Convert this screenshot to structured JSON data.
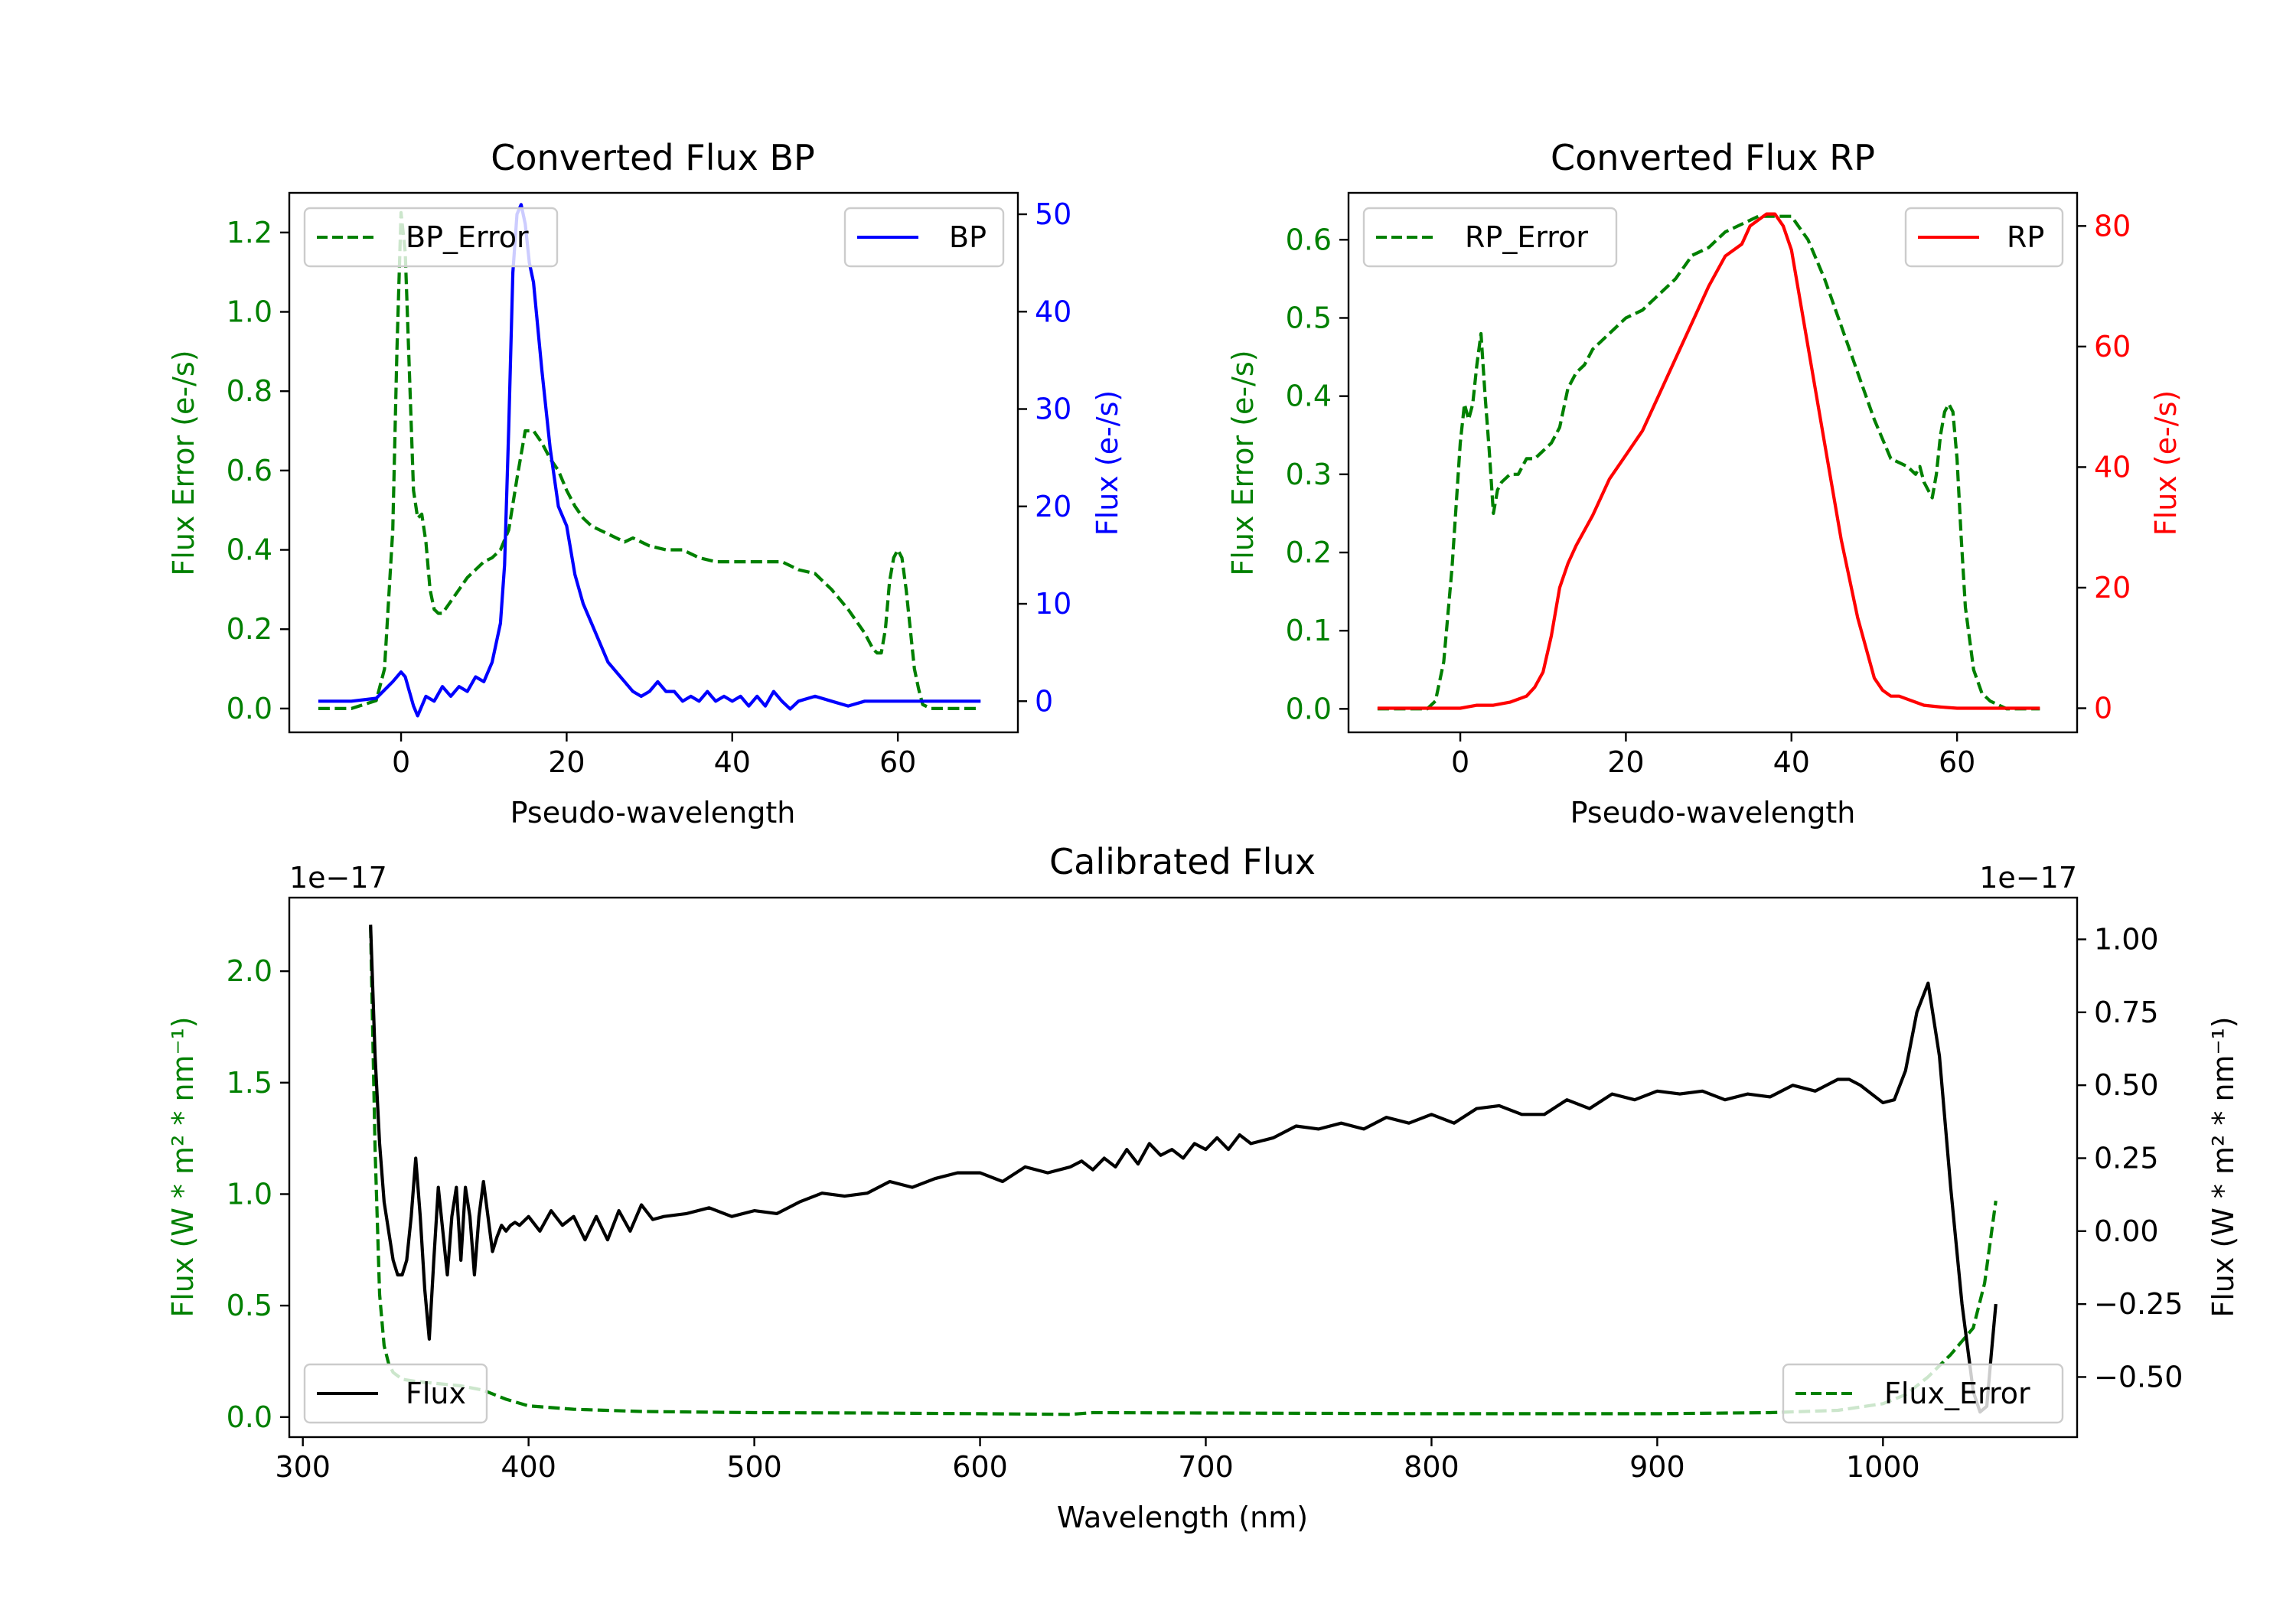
{
  "chart_data": [
    {
      "id": "bp",
      "type": "line",
      "title": "Converted Flux BP",
      "xlabel": "Pseudo-wavelength",
      "ylabel_left": "Flux Error (e-/s)",
      "ylabel_right": "Flux (e-/s)",
      "xlim": [
        -13.5,
        74.5
      ],
      "ylim_left": [
        -0.06,
        1.3
      ],
      "ylim_right": [
        -3.2,
        52.2
      ],
      "xticks": [
        0,
        20,
        40,
        60
      ],
      "xtick_labels": [
        "0",
        "20",
        "40",
        "60"
      ],
      "yticks_left": [
        0.0,
        0.2,
        0.4,
        0.6,
        0.8,
        1.0,
        1.2
      ],
      "ytick_labels_left": [
        "0.0",
        "0.2",
        "0.4",
        "0.6",
        "0.8",
        "1.0",
        "1.2"
      ],
      "yticks_right": [
        0,
        10,
        20,
        30,
        40,
        50
      ],
      "ytick_labels_right": [
        "0",
        "10",
        "20",
        "30",
        "40",
        "50"
      ],
      "colors": {
        "left_axis": "#008000",
        "right_axis": "#0000ff"
      },
      "series": [
        {
          "name": "BP_Error",
          "axis": "left",
          "color": "#008000",
          "style": "dashed",
          "x": [
            -10,
            -6,
            -3,
            -2,
            -1,
            -0.5,
            0,
            0.5,
            1,
            1.5,
            2,
            2.5,
            3,
            3.5,
            4,
            4.5,
            5,
            6,
            7,
            8,
            9,
            10,
            11,
            12,
            13,
            14,
            15,
            16,
            17,
            18,
            19,
            20,
            21,
            22,
            23,
            24,
            25,
            26,
            27,
            28,
            29,
            30,
            32,
            34,
            36,
            38,
            40,
            42,
            44,
            46,
            48,
            50,
            52,
            54,
            56,
            56.5,
            57,
            57.5,
            58,
            58.5,
            59,
            59.5,
            60,
            60.5,
            61,
            61.5,
            62,
            62.5,
            63,
            64,
            66,
            68,
            70
          ],
          "y": [
            0.0,
            0.0,
            0.02,
            0.1,
            0.45,
            0.9,
            1.25,
            1.15,
            0.85,
            0.55,
            0.48,
            0.49,
            0.42,
            0.3,
            0.25,
            0.24,
            0.24,
            0.27,
            0.3,
            0.33,
            0.35,
            0.37,
            0.38,
            0.4,
            0.45,
            0.58,
            0.7,
            0.7,
            0.67,
            0.63,
            0.6,
            0.55,
            0.51,
            0.48,
            0.46,
            0.45,
            0.44,
            0.43,
            0.42,
            0.43,
            0.42,
            0.41,
            0.4,
            0.4,
            0.38,
            0.37,
            0.37,
            0.37,
            0.37,
            0.37,
            0.35,
            0.34,
            0.3,
            0.25,
            0.19,
            0.17,
            0.15,
            0.14,
            0.14,
            0.2,
            0.32,
            0.38,
            0.4,
            0.38,
            0.3,
            0.2,
            0.1,
            0.05,
            0.01,
            0.0,
            0.0,
            0.0,
            0.0
          ]
        },
        {
          "name": "BP",
          "axis": "right",
          "color": "#0000ff",
          "style": "solid",
          "x": [
            -10,
            -6,
            -3,
            -1,
            0,
            0.5,
            1,
            1.5,
            2,
            3,
            4,
            5,
            6,
            7,
            8,
            9,
            10,
            11,
            12,
            12.5,
            13,
            13.5,
            14,
            14.5,
            15,
            15.5,
            16,
            17,
            18,
            19,
            20,
            21,
            22,
            23,
            24,
            25,
            26,
            27,
            28,
            29,
            30,
            31,
            32,
            33,
            34,
            35,
            36,
            37,
            38,
            39,
            40,
            41,
            42,
            43,
            44,
            45,
            46,
            47,
            48,
            50,
            52,
            54,
            56,
            58,
            60,
            62,
            64,
            66,
            68,
            70
          ],
          "y": [
            0,
            0,
            0.3,
            2,
            3,
            2.5,
            1,
            -0.5,
            -1.5,
            0.5,
            0,
            1.5,
            0.5,
            1.5,
            1,
            2.5,
            2,
            4,
            8,
            14,
            28,
            44,
            50,
            51,
            49,
            45,
            43,
            34,
            26,
            20,
            18,
            13,
            10,
            8,
            6,
            4,
            3,
            2,
            1,
            0.5,
            1,
            2,
            1,
            1,
            0,
            0.5,
            0,
            1,
            0,
            0.5,
            0,
            0.5,
            -0.5,
            0.5,
            -0.5,
            1,
            0,
            -0.8,
            0,
            0.5,
            0,
            -0.5,
            0,
            0,
            0,
            0,
            0,
            0,
            0,
            0
          ]
        }
      ],
      "legends": [
        {
          "label": "BP_Error",
          "placement": "upper-left"
        },
        {
          "label": "BP",
          "placement": "upper-right"
        }
      ]
    },
    {
      "id": "rp",
      "type": "line",
      "title": "Converted Flux RP",
      "xlabel": "Pseudo-wavelength",
      "ylabel_left": "Flux Error (e-/s)",
      "ylabel_right": "Flux (e-/s)",
      "xlim": [
        -13.5,
        74.5
      ],
      "ylim_left": [
        -0.03,
        0.66
      ],
      "ylim_right": [
        -4.0,
        85.5
      ],
      "xticks": [
        0,
        20,
        40,
        60
      ],
      "xtick_labels": [
        "0",
        "20",
        "40",
        "60"
      ],
      "yticks_left": [
        0.0,
        0.1,
        0.2,
        0.3,
        0.4,
        0.5,
        0.6
      ],
      "ytick_labels_left": [
        "0.0",
        "0.1",
        "0.2",
        "0.3",
        "0.4",
        "0.5",
        "0.6"
      ],
      "yticks_right": [
        0,
        20,
        40,
        60,
        80
      ],
      "ytick_labels_right": [
        "0",
        "20",
        "40",
        "60",
        "80"
      ],
      "colors": {
        "left_axis": "#008000",
        "right_axis": "#ff0000"
      },
      "series": [
        {
          "name": "RP_Error",
          "axis": "left",
          "color": "#008000",
          "style": "dashed",
          "x": [
            -10,
            -6,
            -4,
            -3,
            -2,
            -1,
            0,
            0.5,
            1,
            1.5,
            2,
            2.5,
            3,
            3.5,
            4,
            4.5,
            5,
            6,
            7,
            8,
            9,
            10,
            11,
            12,
            13,
            14,
            15,
            16,
            17,
            18,
            19,
            20,
            22,
            24,
            26,
            28,
            30,
            32,
            34,
            36,
            38,
            40,
            42,
            44,
            46,
            48,
            50,
            52,
            54,
            55,
            55.5,
            56,
            56.5,
            57,
            57.5,
            58,
            58.5,
            59,
            59.5,
            60,
            60.5,
            61,
            62,
            63,
            64,
            66,
            68,
            70
          ],
          "y": [
            0.0,
            0.0,
            0.0,
            0.01,
            0.06,
            0.18,
            0.34,
            0.39,
            0.37,
            0.39,
            0.44,
            0.48,
            0.4,
            0.33,
            0.25,
            0.28,
            0.29,
            0.3,
            0.3,
            0.32,
            0.32,
            0.33,
            0.34,
            0.36,
            0.41,
            0.43,
            0.44,
            0.46,
            0.47,
            0.48,
            0.49,
            0.5,
            0.51,
            0.53,
            0.55,
            0.58,
            0.59,
            0.61,
            0.62,
            0.63,
            0.63,
            0.63,
            0.6,
            0.55,
            0.49,
            0.43,
            0.37,
            0.32,
            0.31,
            0.3,
            0.31,
            0.29,
            0.28,
            0.27,
            0.3,
            0.35,
            0.38,
            0.39,
            0.38,
            0.32,
            0.22,
            0.13,
            0.05,
            0.02,
            0.01,
            0.0,
            0.0,
            0.0
          ]
        },
        {
          "name": "RP",
          "axis": "right",
          "color": "#ff0000",
          "style": "solid",
          "x": [
            -10,
            -5,
            0,
            2,
            4,
            6,
            8,
            9,
            10,
            11,
            12,
            13,
            14,
            16,
            18,
            20,
            22,
            24,
            26,
            28,
            30,
            32,
            34,
            35,
            36,
            37,
            38,
            39,
            40,
            41,
            42,
            44,
            46,
            48,
            50,
            51,
            52,
            53,
            54,
            55,
            56,
            58,
            60,
            62,
            66,
            70
          ],
          "y": [
            0,
            0,
            0,
            0.5,
            0.5,
            1,
            2,
            3.5,
            6,
            12,
            20,
            24,
            27,
            32,
            38,
            42,
            46,
            52,
            58,
            64,
            70,
            75,
            77,
            80,
            81,
            82,
            82,
            80,
            76,
            68,
            60,
            44,
            28,
            15,
            5,
            3,
            2,
            2,
            1.5,
            1,
            0.5,
            0.2,
            0,
            0,
            0,
            0
          ]
        }
      ],
      "legends": [
        {
          "label": "RP_Error",
          "placement": "upper-left"
        },
        {
          "label": "RP",
          "placement": "upper-right"
        }
      ]
    },
    {
      "id": "cal",
      "type": "line",
      "title": "Calibrated Flux",
      "xlabel": "Wavelength (nm)",
      "ylabel_left": "Flux (W * m² * nm⁻¹)",
      "ylabel_right": "Flux (W * m² * nm⁻¹)",
      "offset_left": "1e−17",
      "offset_right": "1e−17",
      "xlim": [
        294,
        1086
      ],
      "ylim_left": [
        -0.09,
        2.33
      ],
      "ylim_right": [
        -0.706,
        1.143
      ],
      "xticks": [
        300,
        400,
        500,
        600,
        700,
        800,
        900,
        1000
      ],
      "xtick_labels": [
        "300",
        "400",
        "500",
        "600",
        "700",
        "800",
        "900",
        "1000"
      ],
      "yticks_left": [
        0.0,
        0.5,
        1.0,
        1.5,
        2.0
      ],
      "ytick_labels_left": [
        "0.0",
        "0.5",
        "1.0",
        "1.5",
        "2.0"
      ],
      "yticks_right": [
        -0.5,
        -0.25,
        0.0,
        0.25,
        0.5,
        0.75,
        1.0
      ],
      "ytick_labels_right": [
        "−0.50",
        "−0.25",
        "0.00",
        "0.25",
        "0.50",
        "0.75",
        "1.00"
      ],
      "colors": {
        "left_axis": "#008000",
        "right_axis": "#000000"
      },
      "series": [
        {
          "name": "Flux_Error",
          "axis": "left",
          "color": "#008000",
          "style": "dashed",
          "x": [
            330,
            332,
            334,
            336,
            338,
            340,
            344,
            350,
            360,
            370,
            380,
            390,
            400,
            420,
            450,
            500,
            550,
            600,
            640,
            650,
            700,
            800,
            900,
            950,
            980,
            1000,
            1010,
            1020,
            1030,
            1040,
            1045,
            1050
          ],
          "y": [
            2.2,
            1.2,
            0.55,
            0.32,
            0.24,
            0.2,
            0.17,
            0.16,
            0.15,
            0.14,
            0.12,
            0.08,
            0.05,
            0.035,
            0.025,
            0.02,
            0.018,
            0.015,
            0.012,
            0.02,
            0.018,
            0.015,
            0.015,
            0.02,
            0.03,
            0.06,
            0.1,
            0.18,
            0.28,
            0.4,
            0.6,
            0.97
          ]
        },
        {
          "name": "Flux",
          "axis": "right",
          "color": "#000000",
          "style": "solid",
          "wavelength_x": [
            330,
            332,
            334,
            336,
            338,
            340,
            342,
            344,
            346,
            348,
            350,
            352,
            354,
            356,
            358,
            360,
            362,
            364,
            366,
            368,
            370,
            372,
            374,
            376,
            378,
            380,
            382,
            384,
            386,
            388,
            390,
            392,
            394,
            396,
            400,
            405,
            410,
            415,
            420,
            425,
            430,
            435,
            440,
            445,
            450,
            455,
            460,
            470,
            480,
            490,
            500,
            510,
            520,
            530,
            540,
            550,
            560,
            570,
            580,
            590,
            600,
            610,
            620,
            630,
            640,
            645,
            650,
            655,
            660,
            665,
            670,
            675,
            680,
            685,
            690,
            695,
            700,
            705,
            710,
            715,
            720,
            730,
            740,
            750,
            760,
            770,
            780,
            790,
            800,
            810,
            820,
            830,
            840,
            850,
            860,
            870,
            880,
            890,
            900,
            910,
            920,
            930,
            940,
            950,
            960,
            970,
            980,
            985,
            990,
            1000,
            1005,
            1010,
            1015,
            1020,
            1025,
            1030,
            1035,
            1040,
            1043,
            1046,
            1048,
            1050
          ],
          "y": [
            1.05,
            0.6,
            0.3,
            0.1,
            0.0,
            -0.1,
            -0.15,
            -0.15,
            -0.1,
            0.05,
            0.25,
            0.05,
            -0.2,
            -0.37,
            -0.1,
            0.15,
            0.0,
            -0.15,
            0.05,
            0.15,
            -0.1,
            0.15,
            0.05,
            -0.15,
            0.05,
            0.17,
            0.05,
            -0.07,
            -0.02,
            0.02,
            0.0,
            0.02,
            0.03,
            0.02,
            0.05,
            0.0,
            0.07,
            0.02,
            0.05,
            -0.03,
            0.05,
            -0.03,
            0.07,
            0.0,
            0.09,
            0.04,
            0.05,
            0.06,
            0.08,
            0.05,
            0.07,
            0.06,
            0.1,
            0.13,
            0.12,
            0.13,
            0.17,
            0.15,
            0.18,
            0.2,
            0.2,
            0.17,
            0.22,
            0.2,
            0.22,
            0.24,
            0.21,
            0.25,
            0.22,
            0.28,
            0.23,
            0.3,
            0.26,
            0.28,
            0.25,
            0.3,
            0.28,
            0.32,
            0.28,
            0.33,
            0.3,
            0.32,
            0.36,
            0.35,
            0.37,
            0.35,
            0.39,
            0.37,
            0.4,
            0.37,
            0.42,
            0.43,
            0.4,
            0.4,
            0.45,
            0.42,
            0.47,
            0.45,
            0.48,
            0.47,
            0.48,
            0.45,
            0.47,
            0.46,
            0.5,
            0.48,
            0.52,
            0.52,
            0.5,
            0.44,
            0.45,
            0.55,
            0.75,
            0.85,
            0.6,
            0.15,
            -0.25,
            -0.55,
            -0.62,
            -0.6,
            -0.42,
            -0.25
          ]
        }
      ],
      "legends": [
        {
          "label": "Flux",
          "placement": "lower-left"
        },
        {
          "label": "Flux_Error",
          "placement": "lower-right"
        }
      ]
    }
  ]
}
